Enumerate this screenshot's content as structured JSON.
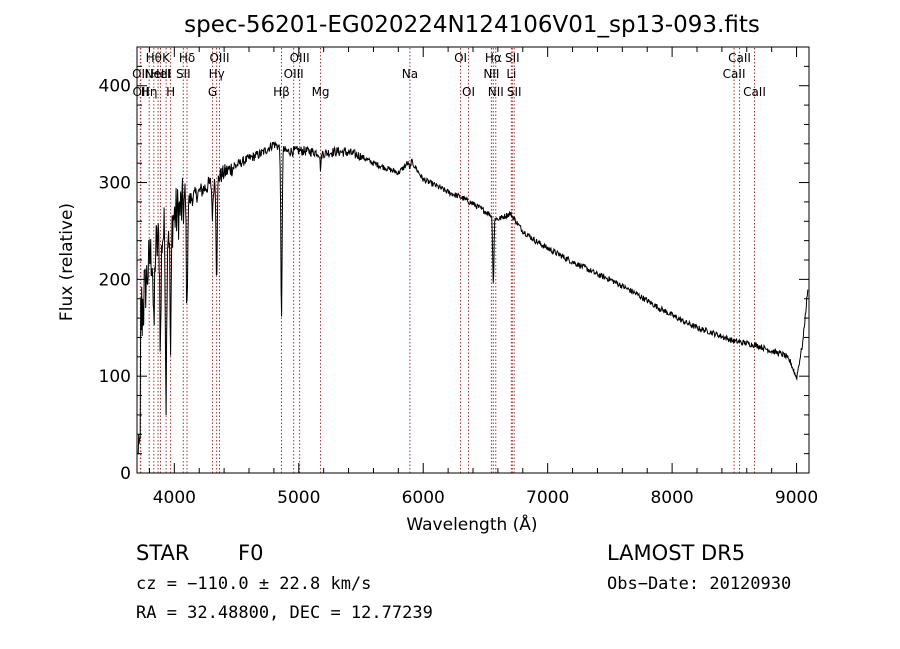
{
  "chart_data": {
    "type": "line",
    "title": "spec-56201-EG020224N124106V01_sp13-093.fits",
    "xlabel": "Wavelength (Å)",
    "ylabel": "Flux (relative)",
    "xlim": [
      3700,
      9100
    ],
    "ylim": [
      0,
      440
    ],
    "x_ticks": [
      4000,
      5000,
      6000,
      7000,
      8000,
      9000
    ],
    "x_tick_labels": [
      "4000",
      "5000",
      "6000",
      "7000",
      "8000",
      "9000"
    ],
    "y_ticks": [
      0,
      100,
      200,
      300,
      400
    ],
    "y_tick_labels": [
      "0",
      "100",
      "200",
      "300",
      "400"
    ],
    "grid": false,
    "line_color": "#000000",
    "marker_color": "#b03030",
    "continuum": [
      [
        3720,
        150
      ],
      [
        3800,
        220
      ],
      [
        3900,
        245
      ],
      [
        4000,
        265
      ],
      [
        4100,
        280
      ],
      [
        4200,
        290
      ],
      [
        4300,
        300
      ],
      [
        4400,
        310
      ],
      [
        4500,
        318
      ],
      [
        4600,
        325
      ],
      [
        4700,
        330
      ],
      [
        4800,
        340
      ],
      [
        4900,
        332
      ],
      [
        5000,
        333
      ],
      [
        5100,
        332
      ],
      [
        5200,
        330
      ],
      [
        5300,
        332
      ],
      [
        5400,
        331
      ],
      [
        5500,
        327
      ],
      [
        5600,
        320
      ],
      [
        5700,
        315
      ],
      [
        5800,
        310
      ],
      [
        5900,
        323
      ],
      [
        6000,
        303
      ],
      [
        6100,
        297
      ],
      [
        6200,
        290
      ],
      [
        6300,
        285
      ],
      [
        6400,
        278
      ],
      [
        6500,
        270
      ],
      [
        6600,
        262
      ],
      [
        6700,
        268
      ],
      [
        6800,
        250
      ],
      [
        6900,
        240
      ],
      [
        7000,
        232
      ],
      [
        7100,
        225
      ],
      [
        7200,
        218
      ],
      [
        7300,
        212
      ],
      [
        7400,
        205
      ],
      [
        7500,
        200
      ],
      [
        7600,
        193
      ],
      [
        7700,
        186
      ],
      [
        7800,
        178
      ],
      [
        7900,
        170
      ],
      [
        8000,
        163
      ],
      [
        8100,
        156
      ],
      [
        8200,
        150
      ],
      [
        8300,
        146
      ],
      [
        8400,
        141
      ],
      [
        8500,
        136
      ],
      [
        8600,
        134
      ],
      [
        8700,
        131
      ],
      [
        8800,
        126
      ],
      [
        8900,
        122
      ],
      [
        8950,
        115
      ],
      [
        9000,
        98
      ],
      [
        9050,
        135
      ],
      [
        9090,
        190
      ]
    ],
    "absorption_lines": [
      {
        "x": 3835,
        "depth": 90
      },
      {
        "x": 3889,
        "depth": 110
      },
      {
        "x": 3934,
        "depth": 170
      },
      {
        "x": 3970,
        "depth": 140
      },
      {
        "x": 4102,
        "depth": 110
      },
      {
        "x": 4307,
        "depth": 35
      },
      {
        "x": 4340,
        "depth": 100
      },
      {
        "x": 4861,
        "depth": 180
      },
      {
        "x": 5175,
        "depth": 15
      },
      {
        "x": 5893,
        "depth": 10
      },
      {
        "x": 6563,
        "depth": 70
      }
    ],
    "line_markers": [
      {
        "x": 3727,
        "label": "OII",
        "row": 1
      },
      {
        "x": 3730,
        "label": "OII",
        "row": 3
      },
      {
        "x": 3798,
        "label": "Hη",
        "row": 3
      },
      {
        "x": 3835,
        "label": "Hθ",
        "row": 0
      },
      {
        "x": 3869,
        "label": "NeIII",
        "row": 1
      },
      {
        "x": 3889,
        "label": "HeI",
        "row": 1
      },
      {
        "x": 3934,
        "label": "K",
        "row": 0
      },
      {
        "x": 3970,
        "label": "H",
        "row": 3
      },
      {
        "x": 4072,
        "label": "SII",
        "row": 2
      },
      {
        "x": 4102,
        "label": "Hδ",
        "row": 0
      },
      {
        "x": 4307,
        "label": "G",
        "row": 3
      },
      {
        "x": 4340,
        "label": "Hγ",
        "row": 2
      },
      {
        "x": 4363,
        "label": "OIII",
        "row": 0
      },
      {
        "x": 4861,
        "label": "Hβ",
        "row": 3
      },
      {
        "x": 4959,
        "label": "OIII",
        "row": 2
      },
      {
        "x": 5007,
        "label": "OIII",
        "row": 0
      },
      {
        "x": 5175,
        "label": "Mg",
        "row": 3
      },
      {
        "x": 5893,
        "label": "Na",
        "row": 2
      },
      {
        "x": 6300,
        "label": "OI",
        "row": 0
      },
      {
        "x": 6364,
        "label": "OI",
        "row": 3
      },
      {
        "x": 6548,
        "label": "NII",
        "row": 2
      },
      {
        "x": 6563,
        "label": "Hα",
        "row": 0
      },
      {
        "x": 6583,
        "label": "NII",
        "row": 3
      },
      {
        "x": 6708,
        "label": "Li",
        "row": 2
      },
      {
        "x": 6716,
        "label": "SII",
        "row": 0
      },
      {
        "x": 6731,
        "label": "SII",
        "row": 3
      },
      {
        "x": 8498,
        "label": "CaII",
        "row": 2
      },
      {
        "x": 8542,
        "label": "CaII",
        "row": 0
      },
      {
        "x": 8662,
        "label": "CaII",
        "row": 3
      }
    ]
  },
  "info": {
    "class": "STAR",
    "subclass": "F0",
    "survey": "LAMOST  DR5",
    "cz": "cz = −110.0 ± 22.8 km/s",
    "obs_date": "Obs−Date: 20120930",
    "coords": "RA =  32.48800, DEC =  12.77239"
  }
}
